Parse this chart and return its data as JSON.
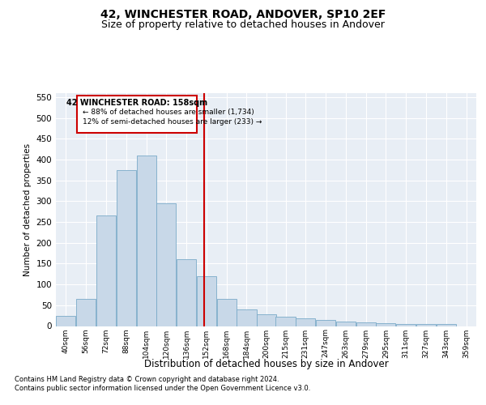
{
  "title": "42, WINCHESTER ROAD, ANDOVER, SP10 2EF",
  "subtitle": "Size of property relative to detached houses in Andover",
  "xlabel": "Distribution of detached houses by size in Andover",
  "ylabel": "Number of detached properties",
  "footnote1": "Contains HM Land Registry data © Crown copyright and database right 2024.",
  "footnote2": "Contains public sector information licensed under the Open Government Licence v3.0.",
  "annotation_line1": "42 WINCHESTER ROAD: 158sqm",
  "annotation_line2": "← 88% of detached houses are smaller (1,734)",
  "annotation_line3": "12% of semi-detached houses are larger (233) →",
  "bar_color": "#c8d8e8",
  "bar_edge_color": "#7aaac8",
  "red_line_x": 158,
  "red_line_color": "#cc0000",
  "categories": [
    "40sqm",
    "56sqm",
    "72sqm",
    "88sqm",
    "104sqm",
    "120sqm",
    "136sqm",
    "152sqm",
    "168sqm",
    "184sqm",
    "200sqm",
    "215sqm",
    "231sqm",
    "247sqm",
    "263sqm",
    "279sqm",
    "295sqm",
    "311sqm",
    "327sqm",
    "343sqm",
    "359sqm"
  ],
  "bin_edges": [
    40,
    56,
    72,
    88,
    104,
    120,
    136,
    152,
    168,
    184,
    200,
    215,
    231,
    247,
    263,
    279,
    295,
    311,
    327,
    343,
    359
  ],
  "bin_width": 16,
  "values": [
    25,
    65,
    265,
    375,
    410,
    295,
    160,
    120,
    65,
    40,
    28,
    22,
    18,
    14,
    10,
    8,
    6,
    5,
    4,
    4
  ],
  "ylim": [
    0,
    560
  ],
  "yticks": [
    0,
    50,
    100,
    150,
    200,
    250,
    300,
    350,
    400,
    450,
    500,
    550
  ],
  "background_color": "#e8eef5",
  "fig_background": "#ffffff",
  "grid_color": "#ffffff",
  "title_fontsize": 10,
  "subtitle_fontsize": 9
}
